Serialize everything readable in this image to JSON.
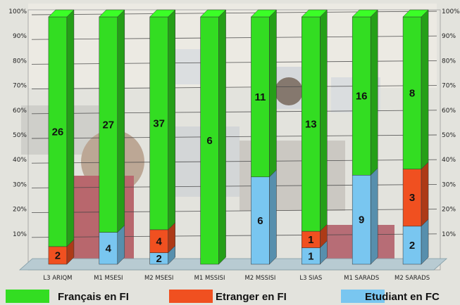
{
  "chart_data": {
    "type": "bar",
    "stacked": true,
    "percent": true,
    "categories": [
      "L3 ARIQM",
      "M1 MSESI",
      "M2 MSESI",
      "M1 MSSISI",
      "M2 MSSISI",
      "L3 SIAS",
      "M1 SARADS",
      "M2 SARADS"
    ],
    "series": [
      {
        "name": "Etudiant en FC",
        "color": "#79c6f0",
        "values": [
          0,
          4,
          2,
          0,
          6,
          1,
          9,
          2
        ]
      },
      {
        "name": "Etranger en FI",
        "color": "#f05020",
        "values": [
          2,
          0,
          4,
          0,
          0,
          1,
          0,
          3
        ]
      },
      {
        "name": "Français en FI",
        "color": "#33dd22",
        "values": [
          26,
          27,
          37,
          6,
          11,
          13,
          16,
          8
        ]
      }
    ],
    "yticks": [
      "10%",
      "20%",
      "30%",
      "40%",
      "50%",
      "60%",
      "70%",
      "80%",
      "90%",
      "100%"
    ],
    "ylim": [
      0,
      100
    ],
    "y_axes": "both sides",
    "legend": {
      "position": "bottom",
      "order": [
        "Français en FI",
        "Etranger en FI",
        "Etudiant en FC"
      ]
    },
    "grid": true,
    "style": "3d"
  }
}
